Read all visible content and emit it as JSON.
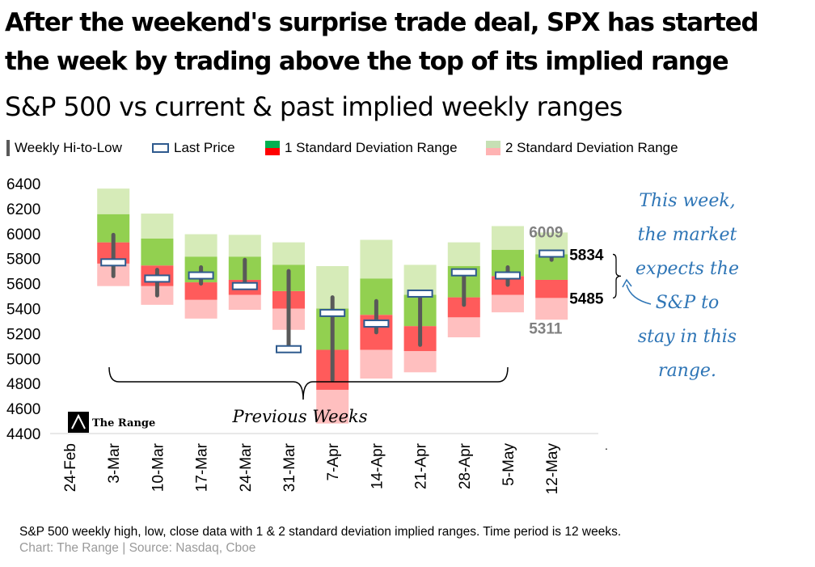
{
  "headline": {
    "line1": "After the weekend's  surprise trade deal, SPX has started",
    "line2": "the week by trading above the top of its implied  range"
  },
  "subtitle": "S&P 500 vs current & past implied weekly ranges",
  "legend": [
    {
      "label": "Weekly Hi-to-Low",
      "icon": "vertical-bar"
    },
    {
      "label": "Last Price",
      "icon": "hollow-rect"
    },
    {
      "label": "1 Standard Deviation Range",
      "icon": "green-red-block"
    },
    {
      "label": "2 Standard Deviation Range",
      "icon": "lightgreen-pink-block"
    }
  ],
  "colors": {
    "one_sd_upper": "#92D050",
    "one_sd_lower": "#FF5B5B",
    "two_sd_upper": "#D6EBB8",
    "two_sd_lower": "#FFBFBF",
    "hi_lo_bar": "#595959",
    "last_price_border": "#2E5A8E",
    "annotation": "#2E75B6",
    "muted_label": "#808080"
  },
  "chart_data": {
    "type": "range",
    "ylim": [
      4400,
      6400
    ],
    "yticks": [
      4400,
      4600,
      4800,
      5000,
      5200,
      5400,
      5600,
      5800,
      6000,
      6200,
      6400
    ],
    "categories": [
      "24-Feb",
      "3-Mar",
      "10-Mar",
      "17-Mar",
      "24-Mar",
      "31-Mar",
      "7-Apr",
      "14-Apr",
      "21-Apr",
      "28-Apr",
      "5-May",
      "12-May"
    ],
    "weeks": [
      {
        "week": "3-Mar",
        "sd2_low": 5580,
        "sd1_low": 5760,
        "mid": 5930,
        "sd1_high": 6155,
        "sd2_high": 6360,
        "low": 5660,
        "high": 5990,
        "last": 5770
      },
      {
        "week": "10-Mar",
        "sd2_low": 5430,
        "sd1_low": 5580,
        "mid": 5745,
        "sd1_high": 5960,
        "sd2_high": 6160,
        "low": 5505,
        "high": 5710,
        "last": 5640
      },
      {
        "week": "17-Mar",
        "sd2_low": 5320,
        "sd1_low": 5470,
        "mid": 5610,
        "sd1_high": 5815,
        "sd2_high": 5995,
        "low": 5600,
        "high": 5730,
        "last": 5665
      },
      {
        "week": "24-Mar",
        "sd2_low": 5390,
        "sd1_low": 5510,
        "mid": 5630,
        "sd1_high": 5815,
        "sd2_high": 5990,
        "low": 5600,
        "high": 5790,
        "last": 5580
      },
      {
        "week": "31-Mar",
        "sd2_low": 5230,
        "sd1_low": 5400,
        "mid": 5540,
        "sd1_high": 5750,
        "sd2_high": 5930,
        "low": 5080,
        "high": 5700,
        "last": 5075
      },
      {
        "week": "7-Apr",
        "sd2_low": 4480,
        "sd1_low": 4750,
        "mid": 5070,
        "sd1_high": 5400,
        "sd2_high": 5740,
        "low": 4830,
        "high": 5490,
        "last": 5365
      },
      {
        "week": "14-Apr",
        "sd2_low": 4840,
        "sd1_low": 5070,
        "mid": 5350,
        "sd1_high": 5640,
        "sd2_high": 5950,
        "low": 5210,
        "high": 5460,
        "last": 5280
      },
      {
        "week": "21-Apr",
        "sd2_low": 4890,
        "sd1_low": 5060,
        "mid": 5260,
        "sd1_high": 5510,
        "sd2_high": 5750,
        "low": 5110,
        "high": 5510,
        "last": 5520
      },
      {
        "week": "28-Apr",
        "sd2_low": 5170,
        "sd1_low": 5330,
        "mid": 5490,
        "sd1_high": 5740,
        "sd2_high": 5930,
        "low": 5430,
        "high": 5690,
        "last": 5690
      },
      {
        "week": "5-May",
        "sd2_low": 5370,
        "sd1_low": 5510,
        "mid": 5660,
        "sd1_high": 5870,
        "sd2_high": 6060,
        "low": 5590,
        "high": 5730,
        "last": 5665
      },
      {
        "week": "12-May",
        "sd2_low": 5311,
        "sd1_low": 5485,
        "mid": 5630,
        "sd1_high": 5834,
        "sd2_high": 6009,
        "low": 5790,
        "high": 5850,
        "last": 5840
      }
    ],
    "current_labels": {
      "sd2_high": "6009",
      "sd1_high": "5834",
      "sd1_low": "5485",
      "sd2_low": "5311"
    }
  },
  "previous_weeks_label": "Previous Weeks",
  "watermark": "The Range",
  "annotation_lines": [
    "This week,",
    "the market",
    "expects the",
    "S&P to",
    "stay in this",
    "range."
  ],
  "footnote": "S&P 500 weekly high, low, close data with  1 & 2 standard deviation implied ranges. Time period is 12 weeks.",
  "source": "Chart: The Range | Source: Nasdaq, Cboe"
}
